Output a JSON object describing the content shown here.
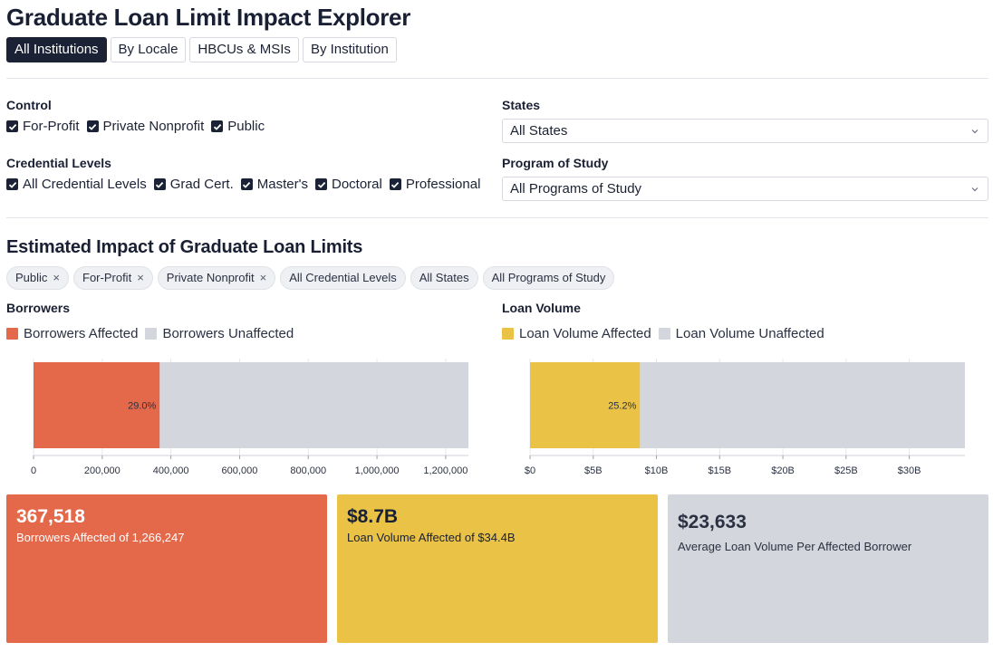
{
  "title": "Graduate Loan Limit Impact Explorer",
  "tabs": [
    {
      "label": "All Institutions",
      "active": true
    },
    {
      "label": "By Locale",
      "active": false
    },
    {
      "label": "HBCUs & MSIs",
      "active": false
    },
    {
      "label": "By Institution",
      "active": false
    }
  ],
  "filters": {
    "control": {
      "label": "Control",
      "options": [
        {
          "label": "For-Profit",
          "checked": true
        },
        {
          "label": "Private Nonprofit",
          "checked": true
        },
        {
          "label": "Public",
          "checked": true
        }
      ]
    },
    "credential": {
      "label": "Credential Levels",
      "options": [
        {
          "label": "All Credential Levels",
          "checked": true
        },
        {
          "label": "Grad Cert.",
          "checked": true
        },
        {
          "label": "Master's",
          "checked": true
        },
        {
          "label": "Doctoral",
          "checked": true
        },
        {
          "label": "Professional",
          "checked": true
        }
      ]
    },
    "states": {
      "label": "States",
      "value": "All States"
    },
    "program": {
      "label": "Program of Study",
      "value": "All Programs of Study"
    }
  },
  "impact": {
    "title": "Estimated Impact of Graduate Loan Limits",
    "pills": [
      {
        "label": "Public",
        "removable": true
      },
      {
        "label": "For-Profit",
        "removable": true
      },
      {
        "label": "Private Nonprofit",
        "removable": true
      },
      {
        "label": "All Credential Levels",
        "removable": false
      },
      {
        "label": "All States",
        "removable": false
      },
      {
        "label": "All Programs of Study",
        "removable": false
      }
    ],
    "remove_glyph": "×"
  },
  "colors": {
    "borrowers_affected": "#e4684a",
    "loan_affected": "#e9c246",
    "unaffected": "#d4d6dd",
    "navy": "#1b2236"
  },
  "chart_data": [
    {
      "type": "bar",
      "title": "Borrowers",
      "orientation": "horizontal-stacked",
      "legend": [
        "Borrowers Affected",
        "Borrowers Unaffected"
      ],
      "series": [
        {
          "name": "Borrowers Affected",
          "value": 367518
        },
        {
          "name": "Borrowers Unaffected",
          "value": 898729
        }
      ],
      "bar_label": "29.0%",
      "xlim": [
        0,
        1266247
      ],
      "ticks": [
        0,
        200000,
        400000,
        600000,
        800000,
        1000000,
        1200000
      ],
      "tick_labels": [
        "0",
        "200,000",
        "400,000",
        "600,000",
        "800,000",
        "1,000,000",
        "1,200,000"
      ],
      "grid": true
    },
    {
      "type": "bar",
      "title": "Loan Volume",
      "orientation": "horizontal-stacked",
      "legend": [
        "Loan Volume Affected",
        "Loan Volume Unaffected"
      ],
      "series": [
        {
          "name": "Loan Volume Affected",
          "value": 8.7
        },
        {
          "name": "Loan Volume Unaffected",
          "value": 25.7
        }
      ],
      "bar_label": "25.2%",
      "xlim": [
        0,
        34.4
      ],
      "ticks": [
        0,
        5,
        10,
        15,
        20,
        25,
        30
      ],
      "tick_labels": [
        "$0",
        "$5B",
        "$10B",
        "$15B",
        "$20B",
        "$25B",
        "$30B"
      ],
      "grid": true
    }
  ],
  "cards": [
    {
      "value": "367,518",
      "label": "Borrowers Affected of 1,266,247"
    },
    {
      "value": "$8.7B",
      "label": "Loan Volume Affected of $34.4B"
    },
    {
      "value": "$23,633",
      "label": "Average Loan Volume Per Affected Borrower"
    }
  ]
}
